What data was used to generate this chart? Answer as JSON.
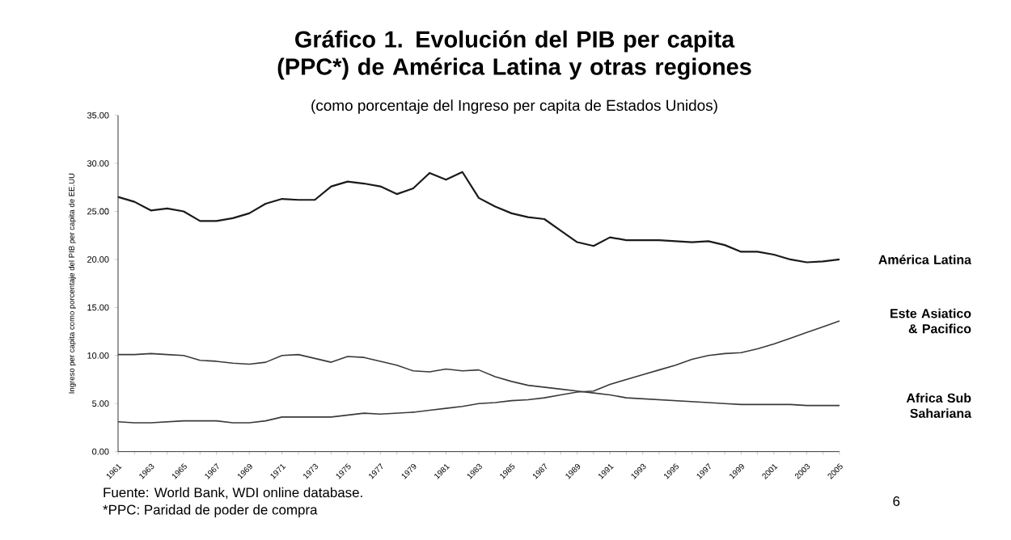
{
  "chart_data": {
    "type": "line",
    "title": "Gráfico 1. Evolución del PIB per capita (PPC*) de América Latina y otras regiones",
    "subtitle": "(como porcentaje del Ingreso per capita de Estados Unidos)",
    "ylabel": "Ingreso per capita como porcentaje del PIB per capita de EE.UU",
    "annotations": [
      "Fuente: World Bank, WDI online database.",
      "*PPC: Paridad de poder de compra",
      "6"
    ],
    "categories": [
      "1961",
      null,
      "1963",
      null,
      "1965",
      null,
      "1967",
      null,
      "1969",
      null,
      "1971",
      null,
      "1973",
      null,
      "1975",
      null,
      "1977",
      null,
      "1979",
      null,
      "1981",
      null,
      "1983",
      null,
      "1985",
      null,
      "1987",
      null,
      "1989",
      null,
      "1991",
      null,
      "1993",
      null,
      "1995",
      null,
      "1997",
      null,
      "1999",
      null,
      "2001",
      null,
      "2003",
      null,
      "2005"
    ],
    "series": [
      {
        "name": "América Latina",
        "color": "#1a1a1a",
        "values": [
          26.5,
          26.0,
          25.1,
          25.3,
          25.0,
          24.0,
          24.0,
          24.3,
          24.8,
          25.8,
          26.3,
          26.2,
          26.2,
          27.6,
          28.1,
          27.9,
          27.6,
          26.8,
          27.4,
          29.0,
          28.3,
          29.1,
          26.4,
          25.5,
          24.8,
          24.4,
          24.2,
          23.0,
          21.8,
          21.4,
          22.3,
          22.0,
          22.0,
          22.0,
          21.9,
          21.8,
          21.9,
          21.5,
          20.8,
          20.8,
          20.5,
          20.0,
          19.7,
          19.8,
          20.0
        ]
      },
      {
        "name": "Este Asiatico & Pacifico",
        "color": "#3a3a3a",
        "values": [
          3.1,
          3.0,
          3.0,
          3.1,
          3.2,
          3.2,
          3.2,
          3.0,
          3.0,
          3.2,
          3.6,
          3.6,
          3.6,
          3.6,
          3.8,
          4.0,
          3.9,
          4.0,
          4.1,
          4.3,
          4.5,
          4.7,
          5.0,
          5.1,
          5.3,
          5.4,
          5.6,
          5.9,
          6.2,
          6.3,
          7.0,
          7.5,
          8.0,
          8.5,
          9.0,
          9.6,
          10.0,
          10.2,
          10.3,
          10.7,
          11.2,
          11.8,
          12.4,
          13.0,
          13.6
        ]
      },
      {
        "name": "Africa Sub Sahariana",
        "color": "#3a3a3a",
        "values": [
          10.1,
          10.1,
          10.2,
          10.1,
          10.0,
          9.5,
          9.4,
          9.2,
          9.1,
          9.3,
          10.0,
          10.1,
          9.7,
          9.3,
          9.9,
          9.8,
          9.4,
          9.0,
          8.4,
          8.3,
          8.6,
          8.4,
          8.5,
          7.8,
          7.3,
          6.9,
          6.7,
          6.5,
          6.3,
          6.1,
          5.9,
          5.6,
          5.5,
          5.4,
          5.3,
          5.2,
          5.1,
          5.0,
          4.9,
          4.9,
          4.9,
          4.9,
          4.8,
          4.8,
          4.8
        ]
      }
    ],
    "ylim": [
      0,
      35
    ],
    "yticks": [
      {
        "value": 0,
        "label": "0.00"
      },
      {
        "value": 5,
        "label": "5.00"
      },
      {
        "value": 10,
        "label": "10.00"
      },
      {
        "value": 15,
        "label": "15.00"
      },
      {
        "value": 20,
        "label": "20.00"
      },
      {
        "value": 25,
        "label": "25.00"
      },
      {
        "value": 30,
        "label": "30.00"
      },
      {
        "value": 35,
        "label": "35.00"
      }
    ],
    "grid": false,
    "legend": false,
    "marker": "none",
    "line_style": "solid"
  }
}
